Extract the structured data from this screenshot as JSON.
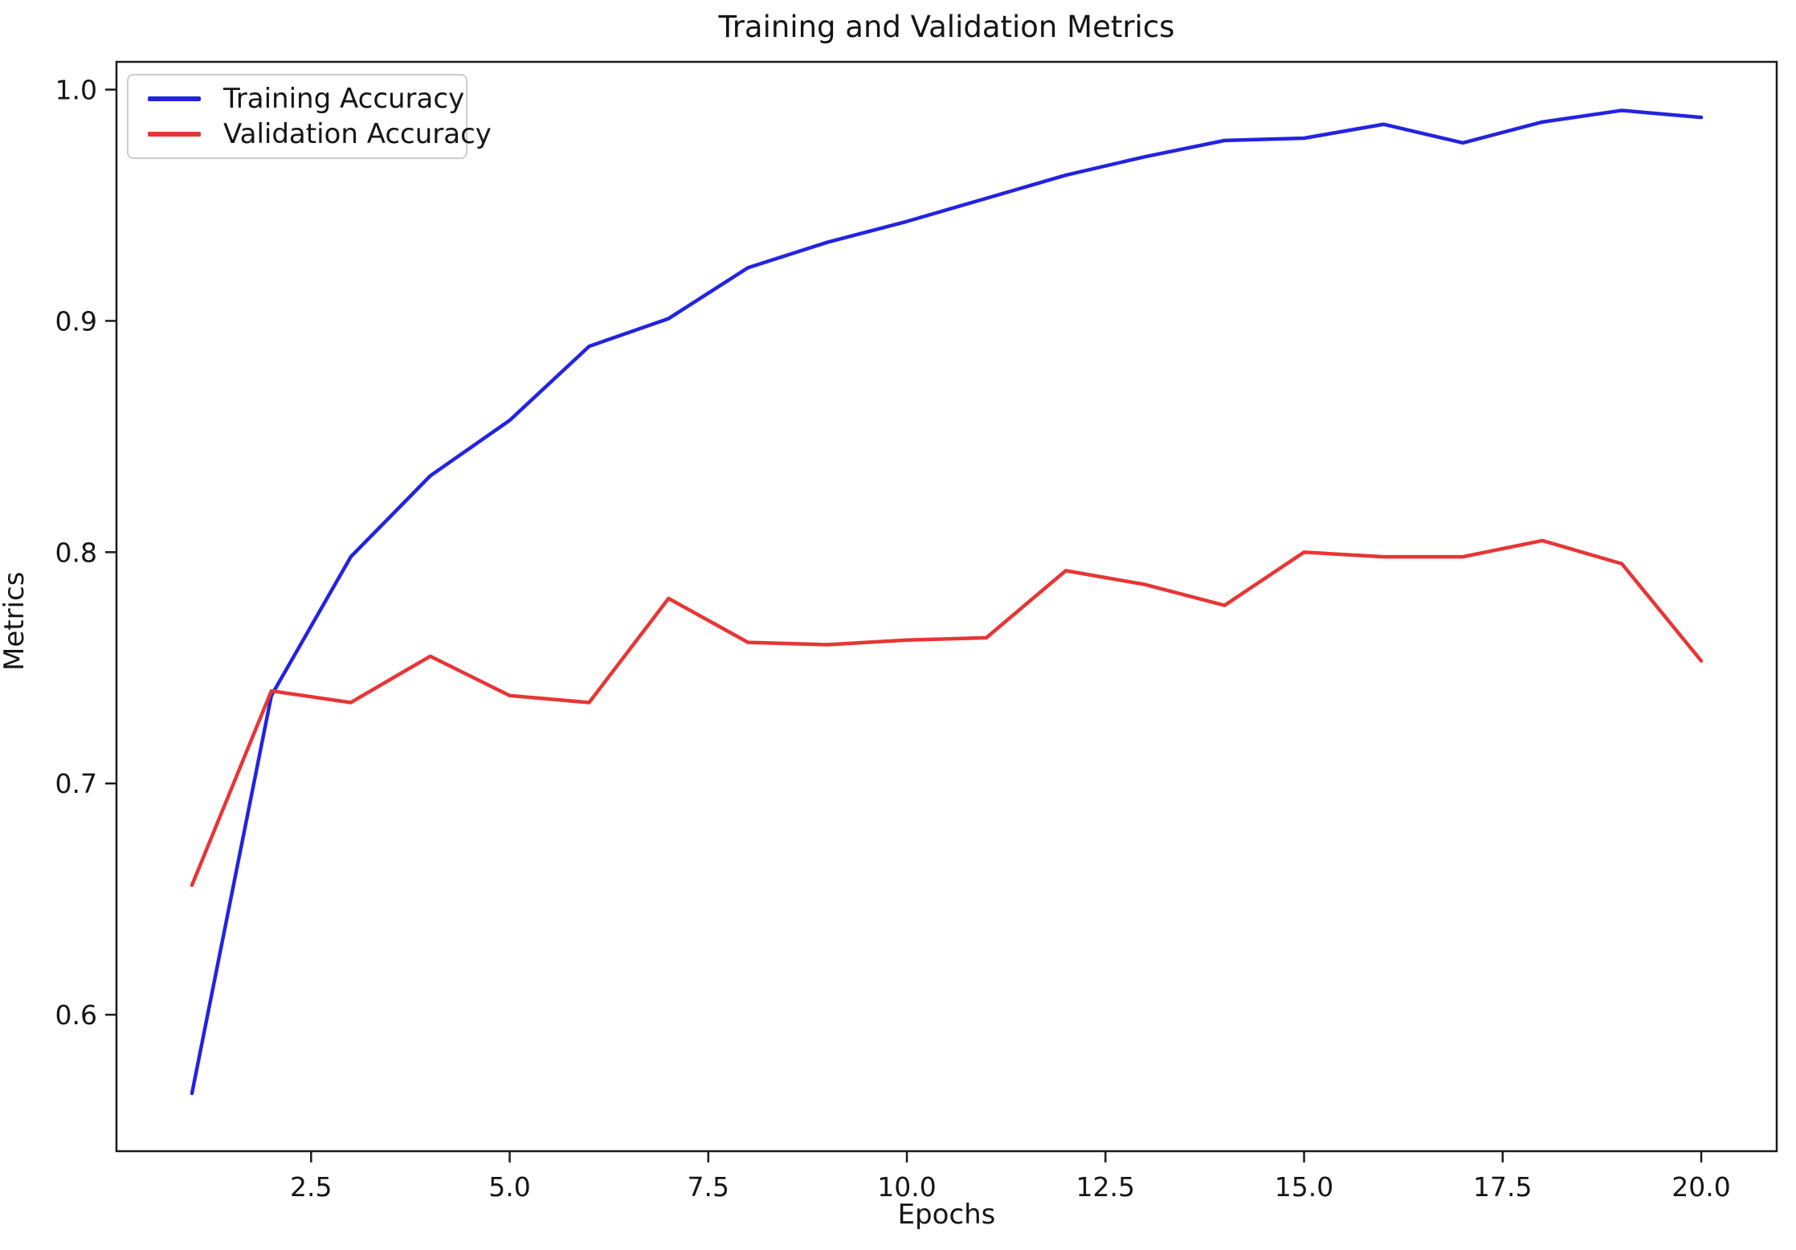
{
  "chart_data": {
    "type": "line",
    "title": "Training and Validation Metrics",
    "xlabel": "Epochs",
    "ylabel": "Metrics",
    "grid": false,
    "legend_position": "upper left",
    "xlim": [
      0.05,
      20.95
    ],
    "ylim": [
      0.541,
      1.012
    ],
    "x_ticks": {
      "values": [
        2.5,
        5.0,
        7.5,
        10.0,
        12.5,
        15.0,
        17.5,
        20.0
      ],
      "labels": [
        "2.5",
        "5.0",
        "7.5",
        "10.0",
        "12.5",
        "15.0",
        "17.5",
        "20.0"
      ]
    },
    "y_ticks": {
      "values": [
        0.6,
        0.7,
        0.8,
        0.9,
        1.0
      ],
      "labels": [
        "0.6",
        "0.7",
        "0.8",
        "0.9",
        "1.0"
      ]
    },
    "x": [
      1,
      2,
      3,
      4,
      5,
      6,
      7,
      8,
      9,
      10,
      11,
      12,
      13,
      14,
      15,
      16,
      17,
      18,
      19,
      20
    ],
    "series": [
      {
        "name": "Training Accuracy",
        "color": "#2323e0",
        "values": [
          0.566,
          0.738,
          0.798,
          0.833,
          0.857,
          0.889,
          0.901,
          0.923,
          0.934,
          0.943,
          0.953,
          0.963,
          0.971,
          0.978,
          0.979,
          0.985,
          0.977,
          0.986,
          0.991,
          0.988
        ]
      },
      {
        "name": "Validation Accuracy",
        "color": "#e83535",
        "values": [
          0.656,
          0.74,
          0.735,
          0.755,
          0.738,
          0.735,
          0.78,
          0.761,
          0.76,
          0.762,
          0.763,
          0.792,
          0.786,
          0.777,
          0.8,
          0.798,
          0.798,
          0.805,
          0.795,
          0.753
        ]
      }
    ],
    "spine_color": "#1a1a1a",
    "tick_label_color": "#151515"
  }
}
